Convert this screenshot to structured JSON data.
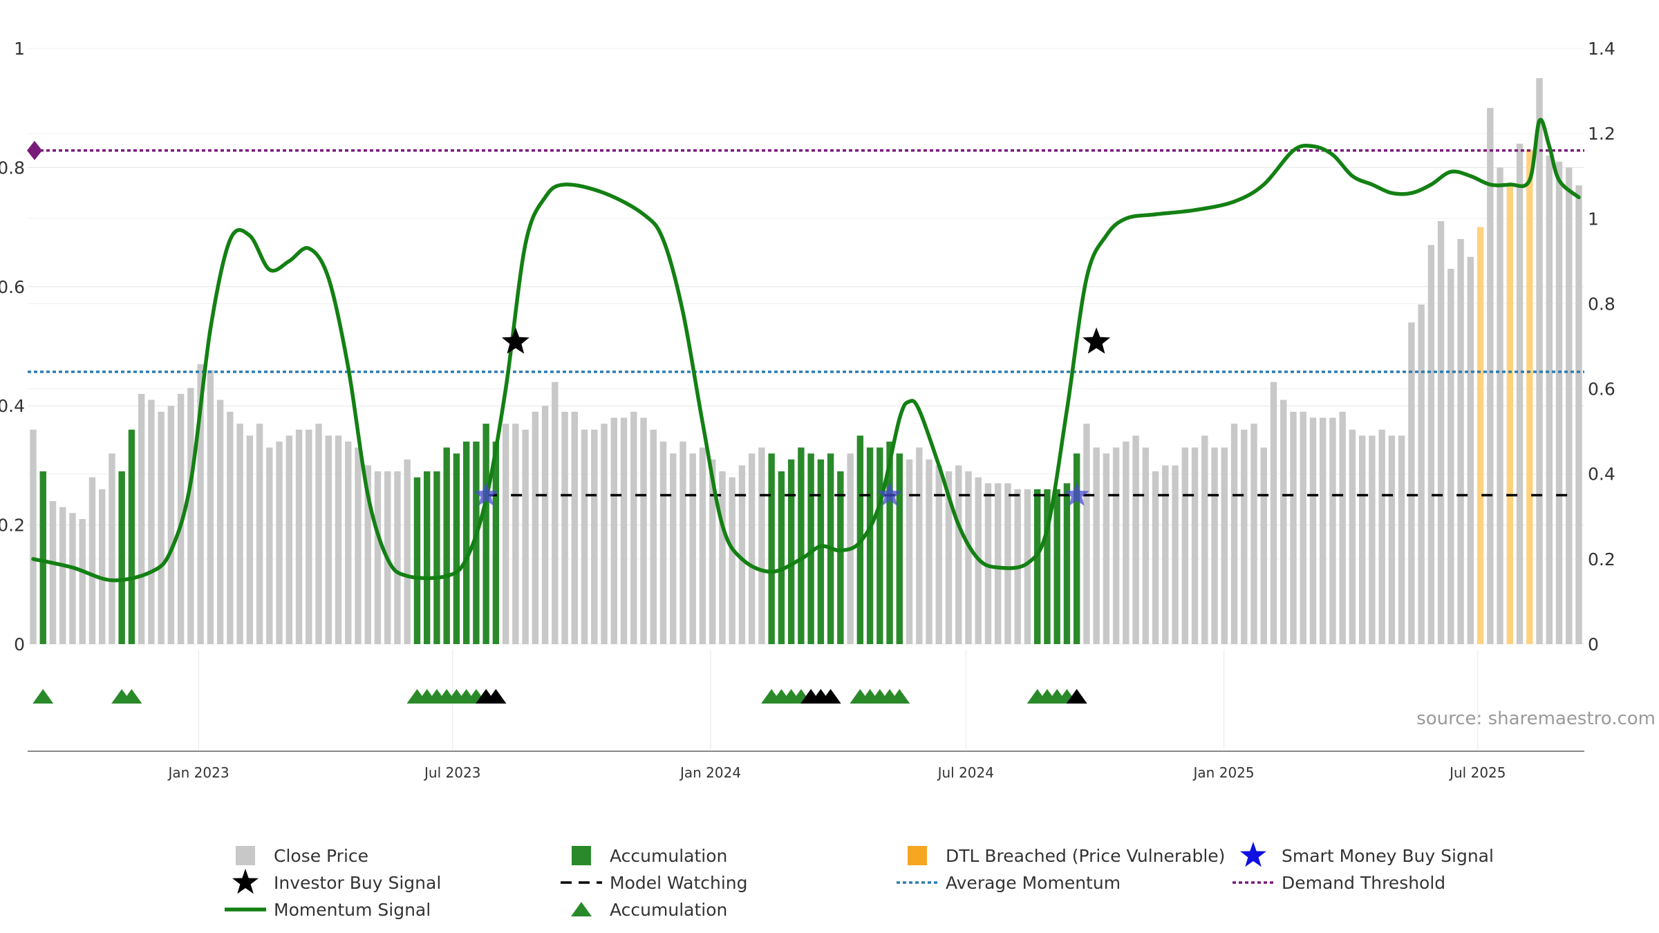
{
  "chart_data": {
    "type": "bar",
    "x_range": [
      "2022-09-01",
      "2025-09-15"
    ],
    "x_ticks": [
      "Jan 2023",
      "Jul 2023",
      "Jan 2024",
      "Jul 2024",
      "Jan 2025",
      "Jul 2025"
    ],
    "y_left": {
      "min": 0,
      "max": 1.0,
      "ticks": [
        "0",
        "0.2",
        "0.4",
        "0.6",
        "0.8",
        "1"
      ]
    },
    "y_right": {
      "min": 0,
      "max": 1.4,
      "ticks": [
        "0",
        "0.2",
        "0.4",
        "0.6",
        "0.8",
        "1",
        "1.2",
        "1.4"
      ]
    },
    "grid": true,
    "colors": {
      "close": "#c8c8c8",
      "accumulation": "#2a8a2a",
      "dtl": "#ffd27f",
      "momentum": "#138013",
      "average": "#2b7bb0",
      "demand": "#7a1a7a",
      "watch": "#000000",
      "smart": "#4a4ad0"
    },
    "weekly_price": [
      0.36,
      0.29,
      0.24,
      0.23,
      0.22,
      0.21,
      0.28,
      0.26,
      0.32,
      0.29,
      0.36,
      0.42,
      0.41,
      0.39,
      0.4,
      0.42,
      0.43,
      0.47,
      0.46,
      0.41,
      0.39,
      0.37,
      0.35,
      0.37,
      0.33,
      0.34,
      0.35,
      0.36,
      0.36,
      0.37,
      0.35,
      0.35,
      0.34,
      0.33,
      0.3,
      0.29,
      0.29,
      0.29,
      0.31,
      0.28,
      0.29,
      0.29,
      0.33,
      0.32,
      0.34,
      0.34,
      0.37,
      0.34,
      0.37,
      0.37,
      0.36,
      0.39,
      0.4,
      0.44,
      0.39,
      0.39,
      0.36,
      0.36,
      0.37,
      0.38,
      0.38,
      0.39,
      0.38,
      0.36,
      0.34,
      0.32,
      0.34,
      0.32,
      0.33,
      0.31,
      0.29,
      0.28,
      0.3,
      0.32,
      0.33,
      0.32,
      0.29,
      0.31,
      0.33,
      0.32,
      0.31,
      0.32,
      0.29,
      0.32,
      0.35,
      0.33,
      0.33,
      0.34,
      0.32,
      0.31,
      0.33,
      0.31,
      0.3,
      0.29,
      0.3,
      0.29,
      0.28,
      0.27,
      0.27,
      0.27,
      0.26,
      0.26,
      0.26,
      0.26,
      0.26,
      0.27,
      0.32,
      0.37,
      0.33,
      0.32,
      0.33,
      0.34,
      0.35,
      0.33,
      0.29,
      0.3,
      0.3,
      0.33,
      0.33,
      0.35,
      0.33,
      0.33,
      0.37,
      0.36,
      0.37,
      0.33,
      0.44,
      0.41,
      0.39,
      0.39,
      0.38,
      0.38,
      0.38,
      0.39,
      0.36,
      0.35,
      0.35,
      0.36,
      0.35,
      0.35,
      0.54,
      0.57,
      0.67,
      0.71,
      0.63,
      0.68,
      0.65,
      0.7,
      0.9,
      0.8,
      0.77,
      0.84,
      0.83,
      0.95,
      0.82,
      0.81,
      0.8,
      0.77
    ],
    "accumulation_ranges": [
      [
        1,
        1
      ],
      [
        9,
        10
      ],
      [
        39,
        47
      ],
      [
        75,
        82
      ],
      [
        84,
        88
      ],
      [
        102,
        106
      ]
    ],
    "dtl_ranges": [
      [
        147,
        147
      ],
      [
        150,
        150
      ],
      [
        152,
        152
      ]
    ],
    "momentum": [
      [
        0,
        0.2
      ],
      [
        4,
        0.18
      ],
      [
        8,
        0.15
      ],
      [
        12,
        0.17
      ],
      [
        14,
        0.22
      ],
      [
        16,
        0.38
      ],
      [
        18,
        0.74
      ],
      [
        20,
        0.95
      ],
      [
        22,
        0.96
      ],
      [
        24,
        0.88
      ],
      [
        26,
        0.9
      ],
      [
        28,
        0.93
      ],
      [
        30,
        0.86
      ],
      [
        32,
        0.65
      ],
      [
        34,
        0.35
      ],
      [
        36,
        0.2
      ],
      [
        38,
        0.16
      ],
      [
        42,
        0.16
      ],
      [
        44,
        0.2
      ],
      [
        46,
        0.34
      ],
      [
        48,
        0.6
      ],
      [
        50,
        0.94
      ],
      [
        52,
        1.05
      ],
      [
        54,
        1.08
      ],
      [
        58,
        1.06
      ],
      [
        62,
        1.01
      ],
      [
        64,
        0.95
      ],
      [
        66,
        0.78
      ],
      [
        68,
        0.52
      ],
      [
        70,
        0.28
      ],
      [
        72,
        0.2
      ],
      [
        75,
        0.17
      ],
      [
        78,
        0.2
      ],
      [
        80,
        0.23
      ],
      [
        82,
        0.22
      ],
      [
        84,
        0.24
      ],
      [
        86,
        0.33
      ],
      [
        88,
        0.53
      ],
      [
        89,
        0.57
      ],
      [
        90,
        0.55
      ],
      [
        92,
        0.42
      ],
      [
        94,
        0.28
      ],
      [
        96,
        0.2
      ],
      [
        98,
        0.18
      ],
      [
        101,
        0.19
      ],
      [
        103,
        0.27
      ],
      [
        105,
        0.55
      ],
      [
        107,
        0.86
      ],
      [
        109,
        0.96
      ],
      [
        111,
        1.0
      ],
      [
        114,
        1.01
      ],
      [
        118,
        1.02
      ],
      [
        122,
        1.04
      ],
      [
        125,
        1.08
      ],
      [
        128,
        1.16
      ],
      [
        130,
        1.17
      ],
      [
        132,
        1.15
      ],
      [
        134,
        1.1
      ],
      [
        136,
        1.08
      ],
      [
        138,
        1.06
      ],
      [
        140,
        1.06
      ],
      [
        142,
        1.08
      ],
      [
        144,
        1.11
      ],
      [
        146,
        1.1
      ],
      [
        148,
        1.08
      ],
      [
        150,
        1.08
      ],
      [
        152,
        1.09
      ],
      [
        153,
        1.23
      ],
      [
        154,
        1.17
      ],
      [
        155,
        1.09
      ],
      [
        157,
        1.05
      ]
    ],
    "average_momentum": 0.64,
    "demand_threshold": 1.16,
    "model_watching_start": 46,
    "model_watching_level": 0.35,
    "investor_buy_signals": [
      [
        49,
        0.71
      ],
      [
        108,
        0.71
      ]
    ],
    "smart_money_buy_signals": [
      46,
      87,
      106
    ],
    "accumulation_triangles": [
      1,
      9,
      10,
      39,
      40,
      41,
      42,
      43,
      44,
      45,
      46,
      47,
      75,
      76,
      77,
      78,
      79,
      80,
      81,
      84,
      85,
      86,
      87,
      88,
      102,
      103,
      104,
      105,
      106
    ],
    "black_triangles": [
      46,
      47,
      79,
      80,
      81,
      106
    ],
    "source_text": "source: sharemaestro.com",
    "legend": [
      {
        "label": "Close Price",
        "symbol": "gray-square"
      },
      {
        "label": "Accumulation",
        "symbol": "green-square"
      },
      {
        "label": "DTL Breached (Price Vulnerable)",
        "symbol": "orange-square"
      },
      {
        "label": "Smart Money Buy Signal",
        "symbol": "blue-star"
      },
      {
        "label": "Investor Buy Signal",
        "symbol": "black-star"
      },
      {
        "label": "Model Watching",
        "symbol": "black-dash"
      },
      {
        "label": "Average Momentum",
        "symbol": "blue-dotted"
      },
      {
        "label": "Demand Threshold",
        "symbol": "purple-dotted"
      },
      {
        "label": "Momentum Signal",
        "symbol": "green-line"
      },
      {
        "label": "Accumulation",
        "symbol": "green-triangle"
      }
    ]
  }
}
